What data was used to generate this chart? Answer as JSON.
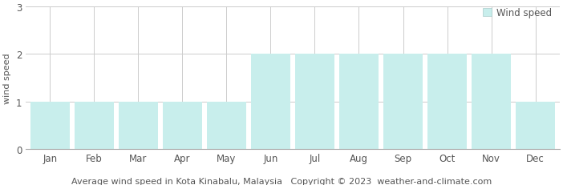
{
  "months": [
    "Jan",
    "Feb",
    "Mar",
    "Apr",
    "May",
    "Jun",
    "Jul",
    "Aug",
    "Sep",
    "Oct",
    "Nov",
    "Dec"
  ],
  "wind_speed": [
    1,
    1,
    1,
    1,
    1,
    2,
    2,
    2,
    2,
    2,
    2,
    1
  ],
  "bar_color": "#c8eeec",
  "bar_edge_color": "#c8eeec",
  "ylim": [
    0,
    3
  ],
  "yticks": [
    0,
    1,
    2,
    3
  ],
  "ylabel": "wind speed",
  "title": "Average wind speed in Kota Kinabalu, Malaysia",
  "copyright": "Copyright © 2023  weather-and-climate.com",
  "legend_label": "Wind speed",
  "legend_color": "#c8eeec",
  "background_color": "#ffffff",
  "plot_bg_color": "#ffffff",
  "grid_color": "#cccccc",
  "title_fontsize": 8.0,
  "axis_label_fontsize": 8,
  "tick_fontsize": 8.5,
  "label_color": "#555555"
}
